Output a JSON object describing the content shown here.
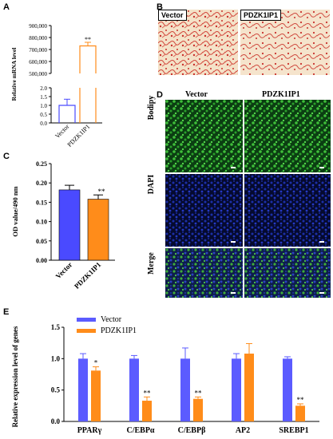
{
  "panels": {
    "A": {
      "letter": "A",
      "chart_data": {
        "type": "bar",
        "categories": [
          "Vector",
          "PDZK1IP1"
        ],
        "values": [
          1.0,
          730000
        ],
        "errors": [
          0.35,
          30000
        ],
        "significance": [
          "",
          "**"
        ],
        "ylabel": "Relative mRNA level",
        "yaxis_broken": true,
        "ylim_lower": [
          0,
          2.0
        ],
        "ylim_upper": [
          500000,
          900000
        ],
        "yticks_lower": [
          "0.0",
          "0.5",
          "1.0",
          "1.5",
          "2.0"
        ],
        "yticks_upper": [
          "500,000",
          "600,000",
          "700,000",
          "800,000",
          "900,000"
        ],
        "colors": [
          "#4a4aff",
          "#ff8c1a"
        ],
        "fill": "outline"
      }
    },
    "B": {
      "letter": "B",
      "labels": [
        "Vector",
        "PDZK1IP1"
      ]
    },
    "C": {
      "letter": "C",
      "chart_data": {
        "type": "bar",
        "categories": [
          "Vector",
          "PDZK1IP1"
        ],
        "values": [
          0.182,
          0.158
        ],
        "errors": [
          0.012,
          0.011
        ],
        "significance": [
          "",
          "**"
        ],
        "ylabel": "OD value/490 nm",
        "ylim": [
          0,
          0.25
        ],
        "yticks": [
          "0.00",
          "0.05",
          "0.10",
          "0.15",
          "0.20",
          "0.25"
        ],
        "colors": [
          "#4a4aff",
          "#ff8c1a"
        ]
      }
    },
    "D": {
      "letter": "D",
      "columns": [
        "Vector",
        "PDZK1IP1"
      ],
      "rows": [
        "Bodipy",
        "DAPI",
        "Merge"
      ]
    },
    "E": {
      "letter": "E",
      "chart_data": {
        "type": "bar",
        "categories": [
          "PPARγ",
          "C/EBPα",
          "C/EBPβ",
          "AP2",
          "SREBP1"
        ],
        "series": [
          {
            "name": "Vector",
            "values": [
              1.0,
              1.0,
              1.0,
              1.0,
              1.0
            ],
            "errors": [
              0.08,
              0.05,
              0.17,
              0.08,
              0.03
            ],
            "color": "#5b5bff"
          },
          {
            "name": "PDZK1IP1",
            "values": [
              0.81,
              0.33,
              0.36,
              1.08,
              0.25
            ],
            "errors": [
              0.06,
              0.06,
              0.03,
              0.16,
              0.03
            ],
            "color": "#ff8c1a"
          }
        ],
        "significance": [
          "*",
          "**",
          "**",
          "",
          "**"
        ],
        "ylabel": "Relative expression level of genes",
        "ylim": [
          0,
          1.5
        ],
        "yticks": [
          "0.0",
          "0.5",
          "1.0",
          "1.5"
        ],
        "legend": "top-left"
      }
    }
  }
}
